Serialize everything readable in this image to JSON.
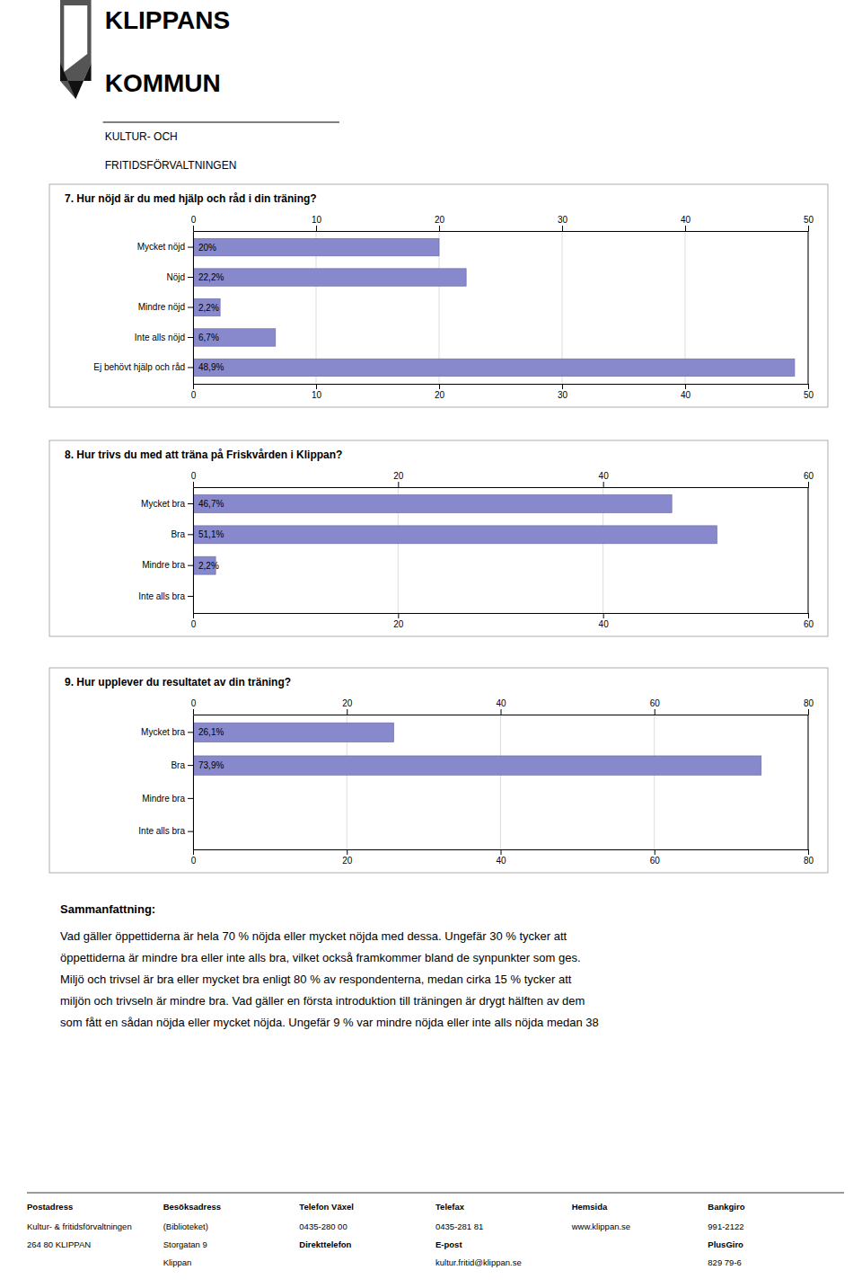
{
  "header": {
    "lines": [
      "KLIPPANS",
      "KOMMUN"
    ],
    "sublines": [
      "KULTUR- OCH",
      "FRITIDSFÖRVALTNINGEN"
    ]
  },
  "chart_data": [
    {
      "type": "bar",
      "orientation": "horizontal",
      "title": "7. Hur nöjd är du med hjälp och råd i din träning?",
      "categories": [
        "Mycket nöjd",
        "Nöjd",
        "Mindre nöjd",
        "Inte alls nöjd",
        "Ej behövt hjälp och råd"
      ],
      "values": [
        20.0,
        22.2,
        2.2,
        6.7,
        48.9
      ],
      "value_labels": [
        "20%",
        "22,2%",
        "2,2%",
        "6,7%",
        "48,9%"
      ],
      "color": "#8888cc",
      "xlim": [
        0,
        50
      ],
      "xticks": [
        0,
        10,
        20,
        30,
        40,
        50
      ],
      "grid": true
    },
    {
      "type": "bar",
      "orientation": "horizontal",
      "title": "8. Hur trivs du med att träna på Friskvården i Klippan?",
      "categories": [
        "Mycket bra",
        "Bra",
        "Mindre bra",
        "Inte alls bra"
      ],
      "values": [
        46.7,
        51.1,
        2.2,
        0.0
      ],
      "value_labels": [
        "46,7%",
        "51,1%",
        "2,2%",
        null
      ],
      "color": "#8888cc",
      "xlim": [
        0,
        60
      ],
      "xticks": [
        0,
        20,
        40,
        60
      ],
      "grid": true
    },
    {
      "type": "bar",
      "orientation": "horizontal",
      "title": "9. Hur upplever du resultatet av din träning?",
      "categories": [
        "Mycket bra",
        "Bra",
        "Mindre bra",
        "Inte alls bra"
      ],
      "values": [
        26.1,
        73.9,
        0.0,
        0.0
      ],
      "value_labels": [
        "26,1%",
        "73,9%",
        null,
        null
      ],
      "color": "#8888cc",
      "xlim": [
        0,
        80
      ],
      "xticks": [
        0,
        20,
        40,
        60,
        80
      ],
      "grid": true
    }
  ],
  "summary": {
    "heading": "Sammanfattning:",
    "lines": [
      "Vad gäller öppettiderna är hela 70 % nöjda eller mycket nöjda med dessa. Ungefär 30 % tycker att",
      "öppettiderna är mindre bra eller inte alls bra, vilket också framkommer bland de synpunkter som ges.",
      "Miljö och trivsel är bra eller mycket bra enligt 80 % av respondenterna, medan cirka 15 % tycker att",
      "miljön och trivseln är mindre bra. Vad gäller en första introduktion till träningen är drygt hälften av dem",
      "som fått en sådan nöjda eller mycket nöjda. Ungefär 9 % var mindre nöjda eller inte alls nöjda medan 38"
    ]
  },
  "footer": {
    "headers": [
      "Postadress",
      "Besöksadress",
      "Telefon Växel",
      "Telefax",
      "Hemsida",
      "Bankgiro"
    ],
    "columns": [
      [
        "Kultur- & fritidsförvaltningen",
        "264 80 KLIPPAN"
      ],
      [
        "(Biblioteket)",
        "Storgatan 9",
        "Klippan"
      ],
      [
        "0435-280 00",
        "Direkttelefon"
      ],
      [
        "0435-281 81",
        "E-post",
        "kultur.fritid@klippan.se"
      ],
      [
        "www.klippan.se"
      ],
      [
        "991-2122",
        "PlusGiro",
        "829 79-6"
      ]
    ],
    "bold_items": [
      "Direkttelefon",
      "E-post",
      "PlusGiro"
    ]
  }
}
